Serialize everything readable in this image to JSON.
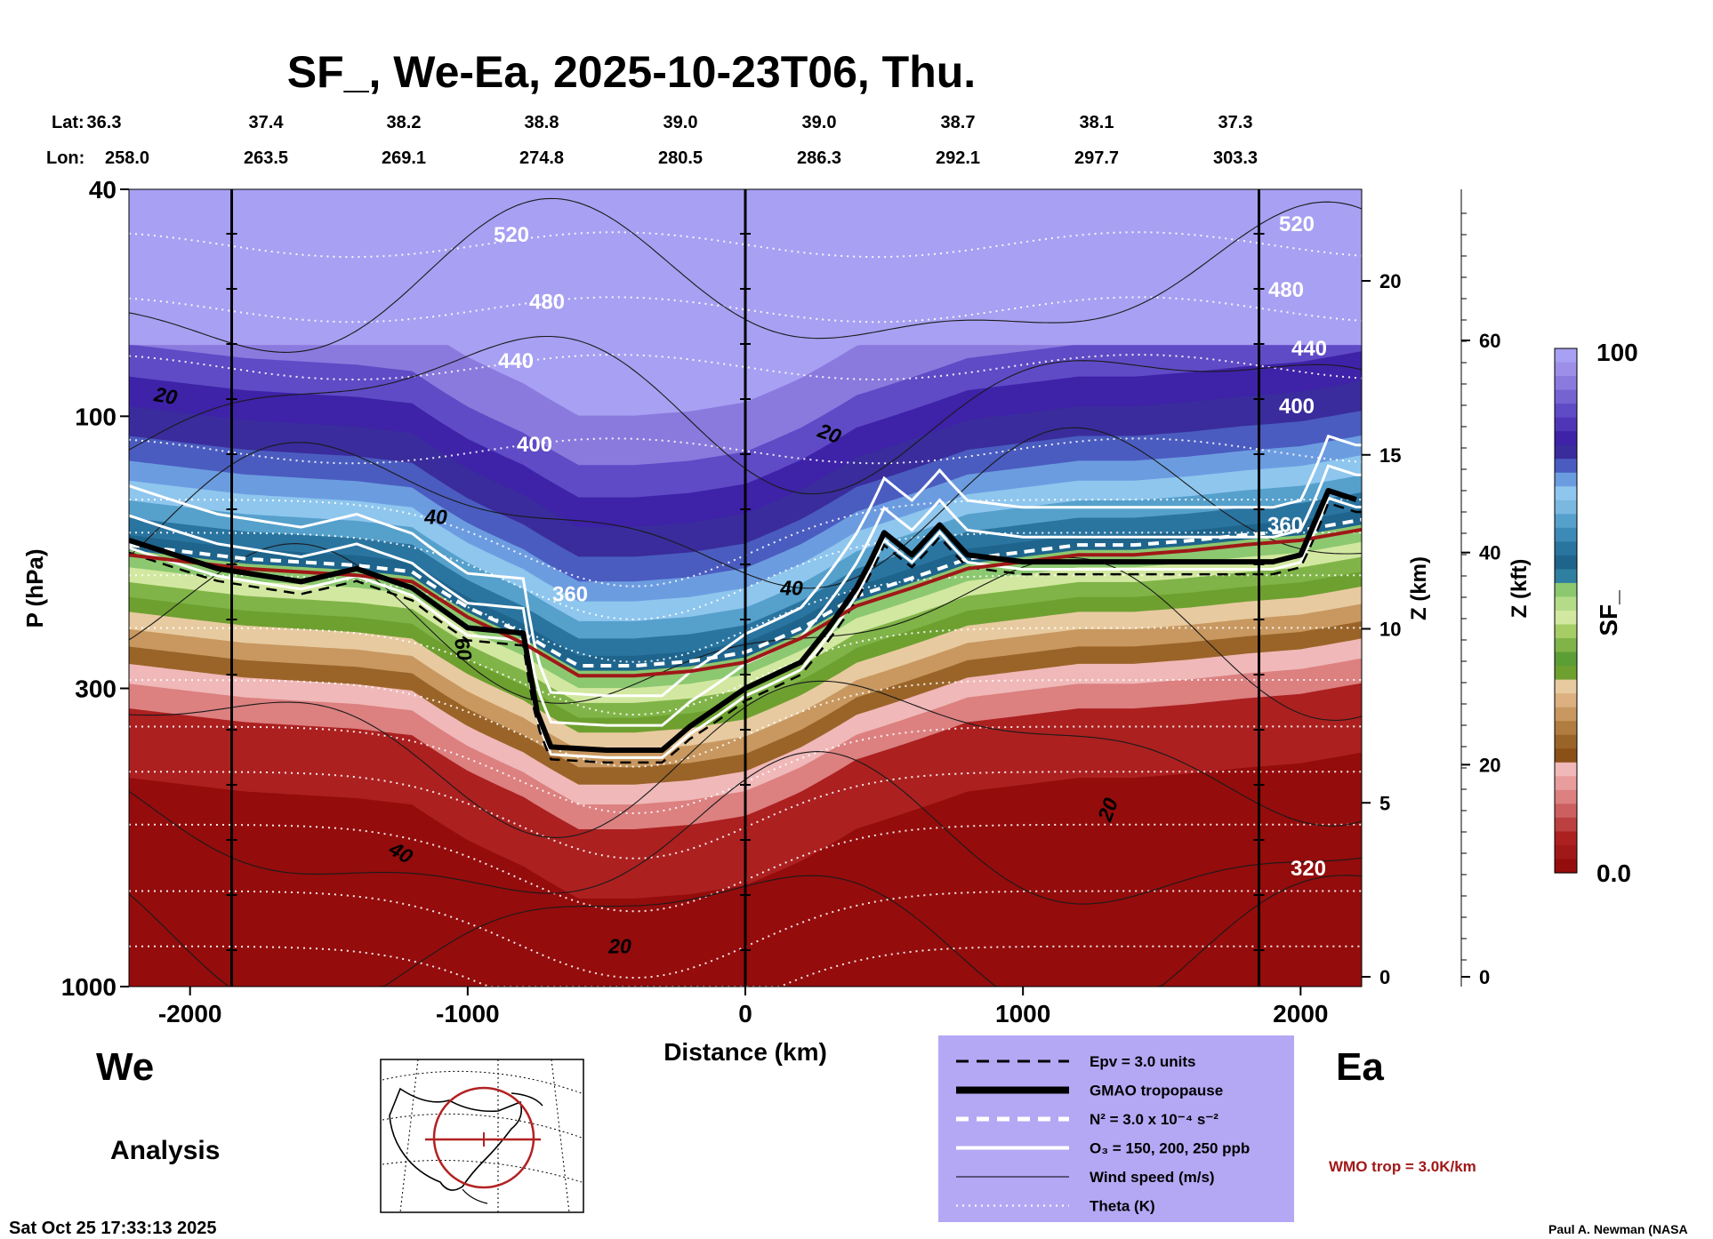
{
  "chart_data": {
    "type": "heatmap",
    "title": "SF_, We-Ea, 2025-10-23T06, Thu.",
    "xlabel": "Distance (km)",
    "ylabel": "P (hPa)",
    "y2label": "Z (km)",
    "y3label": "Z (kft)",
    "colorbar_label": "SF_",
    "xlim": [
      -2220,
      2220
    ],
    "ylim": [
      1000,
      40
    ],
    "x_ticks": [
      -2000,
      -1000,
      0,
      1000,
      2000
    ],
    "x_tick_labels": [
      "-2000",
      "-1000",
      "0",
      "1000",
      "2000"
    ],
    "p_ticks": [
      40,
      100,
      300,
      1000
    ],
    "p_tick_labels": [
      "40",
      "100",
      "300",
      "1000"
    ],
    "z_km_ticks": [
      0,
      5,
      10,
      15,
      20
    ],
    "z_km_tick_labels": [
      "0",
      "5",
      "10",
      "15",
      "20"
    ],
    "z_kft_ticks": [
      0,
      20,
      40,
      60
    ],
    "z_kft_tick_labels": [
      "0",
      "20",
      "40",
      "60"
    ],
    "colorbar_range": [
      0.0,
      100
    ],
    "colorbar_tick_labels": [
      "100",
      "0.0"
    ],
    "colorbar_colors": [
      "#a8a0f2",
      "#9d8fe8",
      "#8a7ade",
      "#7563d2",
      "#5f4bc6",
      "#4f36b6",
      "#3e22a8",
      "#3a2c9c",
      "#4a5cc0",
      "#6c9ce0",
      "#8ec6ee",
      "#7ab8e0",
      "#56a0cc",
      "#3d8ab8",
      "#2a74a0",
      "#1e648c",
      "#2f7fa0",
      "#8cc870",
      "#b4dc88",
      "#d2e8a0",
      "#a6cc66",
      "#80b448",
      "#5c9e36",
      "#6ea030",
      "#e8caa0",
      "#dcb080",
      "#c89860",
      "#b07c40",
      "#9a6428",
      "#8a5018",
      "#f0b8b8",
      "#e89c9c",
      "#dc8080",
      "#cc6060",
      "#bc4040",
      "#ac2020",
      "#a01818",
      "#940c0c"
    ],
    "lat_labels": [
      "36.3",
      "37.4",
      "38.2",
      "38.8",
      "39.0",
      "39.0",
      "38.7",
      "38.1",
      "37.3"
    ],
    "lon_labels": [
      "258.0",
      "263.5",
      "269.1",
      "274.8",
      "280.5",
      "286.3",
      "292.1",
      "297.7",
      "303.3"
    ],
    "theta_contours_K": [
      320,
      360,
      400,
      440,
      480,
      520
    ],
    "wind_contour_labels": [
      "20",
      "40",
      "60",
      "40",
      "40",
      "20",
      "20",
      "20"
    ],
    "vertical_marker_distances_km": [
      -1850,
      0,
      1850
    ],
    "regions": [
      {
        "name": "stratosphere-top",
        "p_range": [
          40,
          75
        ],
        "sf_approx": 100
      },
      {
        "name": "stratosphere-purple",
        "p_range": [
          75,
          110
        ],
        "sf_approx": 90
      },
      {
        "name": "tropopause-layer-blue",
        "p_range": [
          110,
          180
        ],
        "sf_approx": 65
      },
      {
        "name": "green-transition",
        "p_range": [
          180,
          230
        ],
        "sf_approx": 40
      },
      {
        "name": "tan-transition",
        "p_range": [
          230,
          280
        ],
        "sf_approx": 25
      },
      {
        "name": "troposphere-red",
        "p_range": [
          280,
          1000
        ],
        "sf_approx": 0
      }
    ],
    "gmao_tropopause": {
      "distance_km": [
        -2220,
        -1900,
        -1600,
        -1400,
        -1200,
        -1000,
        -800,
        -750,
        -700,
        -500,
        -300,
        -200,
        0,
        200,
        300,
        400,
        450,
        500,
        600,
        700,
        800,
        1000,
        1200,
        1400,
        1600,
        1800,
        1900,
        2000,
        2100,
        2200
      ],
      "pressure_hPa": [
        165,
        185,
        195,
        185,
        200,
        235,
        240,
        330,
        380,
        385,
        385,
        350,
        300,
        270,
        235,
        200,
        180,
        160,
        175,
        155,
        175,
        180,
        180,
        180,
        180,
        180,
        180,
        175,
        135,
        140
      ]
    },
    "wmo_tropopause": {
      "distance_km": [
        -2220,
        -1800,
        -1400,
        -1200,
        -1000,
        -800,
        -600,
        -400,
        -200,
        0,
        200,
        400,
        600,
        800,
        1000,
        1200,
        1400,
        1600,
        1800,
        2000,
        2220
      ],
      "pressure_hPa": [
        175,
        185,
        190,
        195,
        225,
        250,
        285,
        285,
        280,
        270,
        245,
        215,
        200,
        185,
        180,
        175,
        175,
        172,
        168,
        165,
        158
      ]
    }
  },
  "header": {
    "lat_label": "Lat:",
    "lon_label": "Lon:"
  },
  "direction": {
    "west": "We",
    "east": "Ea"
  },
  "analysis_label": "Analysis",
  "legend": {
    "items": [
      {
        "name": "epv",
        "text": "Epv = 3.0 units"
      },
      {
        "name": "gmao-tropopause",
        "text": "GMAO tropopause"
      },
      {
        "name": "n2",
        "text": "N² = 3.0 x 10⁻⁴ s⁻²"
      },
      {
        "name": "o3",
        "text": "O₃ = 150, 200, 250 ppb"
      },
      {
        "name": "wind-speed",
        "text": "Wind speed (m/s)"
      },
      {
        "name": "theta",
        "text": "Theta (K)"
      }
    ],
    "bg_color": "#b4a8f4"
  },
  "wmo_label": "WMO trop = 3.0K/km",
  "wmo_color": "#a01818",
  "timestamp": "Sat Oct 25 17:33:13 2025",
  "credit": "Paul A. Newman (NASA"
}
